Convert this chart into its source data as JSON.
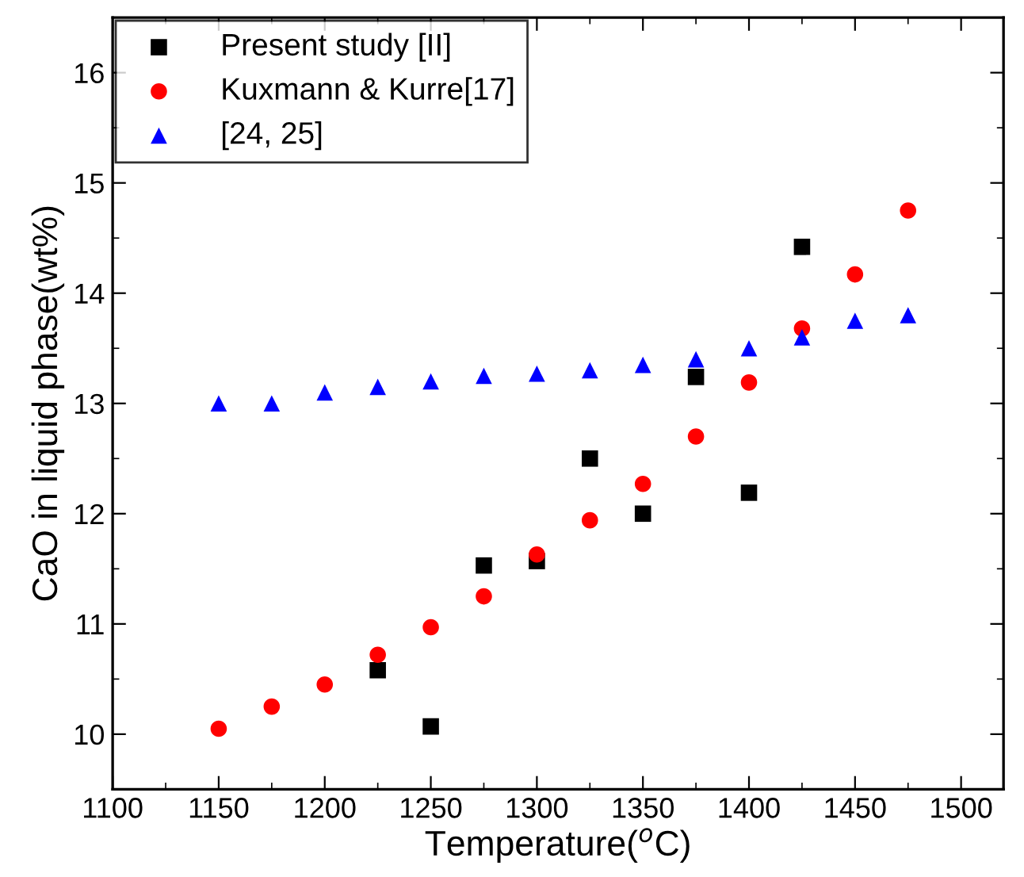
{
  "chart_data": {
    "type": "scatter",
    "xlabel": "Temperature($^{o}$C)",
    "ylabel": "CaO in liquid phase(wt%)",
    "xlim": [
      1100,
      1520
    ],
    "xticks": [
      1100,
      1150,
      1200,
      1250,
      1300,
      1350,
      1400,
      1450,
      1500
    ],
    "ylim": [
      9.5,
      16.5
    ],
    "yticks": [
      10,
      11,
      12,
      13,
      14,
      15,
      16
    ],
    "grid": false,
    "legend": "top left",
    "series": [
      {
        "name": "Present study [II]",
        "color": "#000000",
        "marker": "square",
        "x": [
          1225,
          1250,
          1275,
          1300,
          1325,
          1350,
          1375,
          1400,
          1425
        ],
        "values": [
          10.58,
          10.07,
          11.53,
          11.57,
          12.5,
          12.0,
          13.24,
          12.19,
          14.42
        ]
      },
      {
        "name": "Kuxmann & Kurre[17]",
        "color": "#ff0000",
        "marker": "circle",
        "x": [
          1150,
          1175,
          1200,
          1225,
          1250,
          1275,
          1300,
          1325,
          1350,
          1375,
          1400,
          1425,
          1450,
          1475
        ],
        "values": [
          10.05,
          10.25,
          10.45,
          10.72,
          10.97,
          11.25,
          11.63,
          11.94,
          12.27,
          12.7,
          13.19,
          13.68,
          14.17,
          14.75
        ]
      },
      {
        "name": "[24, 25]",
        "color": "#0000ff",
        "marker": "triangle",
        "x": [
          1150,
          1175,
          1200,
          1225,
          1250,
          1275,
          1300,
          1325,
          1350,
          1375,
          1400,
          1425,
          1450,
          1475
        ],
        "values": [
          13.0,
          13.0,
          13.1,
          13.15,
          13.2,
          13.25,
          13.27,
          13.3,
          13.35,
          13.4,
          13.5,
          13.6,
          13.75,
          13.8
        ]
      }
    ]
  }
}
